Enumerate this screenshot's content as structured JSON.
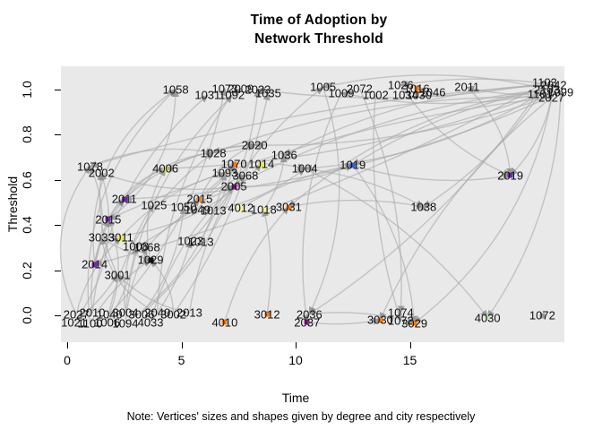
{
  "title": {
    "line1": "Time of Adoption by",
    "line2": "Network Threshold"
  },
  "axes": {
    "x": {
      "label": "Time",
      "ticks": [
        0,
        5,
        10,
        15
      ],
      "range": [
        0,
        21.8
      ]
    },
    "y": {
      "label": "Threshold",
      "ticks": [
        "0.0",
        "0.2",
        "0.4",
        "0.6",
        "0.8",
        "1.0"
      ],
      "range": [
        0,
        1
      ]
    }
  },
  "note": "Note: Vertices' sizes and shapes given by degree and city respectively",
  "colors": {
    "panel_bg": "#e9e9e9",
    "edge": "#a8a8a8",
    "arrow": "#8a8a8a",
    "label_text": "#111111"
  },
  "chart_data": {
    "type": "scatter",
    "title": "Time of Adoption by Network Threshold",
    "xlabel": "Time",
    "ylabel": "Threshold",
    "xlim": [
      0,
      21.8
    ],
    "ylim": [
      -0.05,
      1.05
    ],
    "legend": "none",
    "grid": false,
    "nodes": [
      {
        "label": "1058",
        "time": 4.75,
        "threshold": 1.0,
        "dot": null
      },
      {
        "label": "1031",
        "time": 6.15,
        "threshold": 0.975,
        "dot": null
      },
      {
        "label": "1092",
        "time": 7.2,
        "threshold": 0.975,
        "dot": null
      },
      {
        "label": "1073",
        "time": 6.9,
        "threshold": 1.005,
        "dot": null
      },
      {
        "label": "2009",
        "time": 7.6,
        "threshold": 1.005,
        "dot": null
      },
      {
        "label": "2023",
        "time": 8.35,
        "threshold": 1.0,
        "dot": null
      },
      {
        "label": "1035",
        "time": 8.8,
        "threshold": 0.985,
        "dot": null
      },
      {
        "label": "1005",
        "time": 11.2,
        "threshold": 1.01,
        "dot": null
      },
      {
        "label": "1009",
        "time": 12.0,
        "threshold": 0.985,
        "dot": null
      },
      {
        "label": "2072",
        "time": 12.8,
        "threshold": 1.005,
        "dot": null
      },
      {
        "label": "1002",
        "time": 13.5,
        "threshold": 0.975,
        "dot": null
      },
      {
        "label": "1026",
        "time": 14.6,
        "threshold": 1.02,
        "dot": null
      },
      {
        "label": "1016",
        "time": 15.3,
        "threshold": 1.005,
        "dot": "#e77f24"
      },
      {
        "label": "1034",
        "time": 14.8,
        "threshold": 0.975,
        "dot": null
      },
      {
        "label": "1030",
        "time": 15.4,
        "threshold": 0.975,
        "dot": null
      },
      {
        "label": "1046",
        "time": 16.0,
        "threshold": 0.99,
        "dot": null
      },
      {
        "label": "2011",
        "time": 17.5,
        "threshold": 1.01,
        "dot": null
      },
      {
        "label": "2103",
        "time": 21.0,
        "threshold": 1.0,
        "dot": null
      },
      {
        "label": "1101",
        "time": 20.7,
        "threshold": 0.98,
        "dot": null
      },
      {
        "label": "2042",
        "time": 21.3,
        "threshold": 1.02,
        "dot": null
      },
      {
        "label": "1099",
        "time": 21.6,
        "threshold": 0.99,
        "dot": null
      },
      {
        "label": "2027",
        "time": 21.2,
        "threshold": 0.965,
        "dot": null
      },
      {
        "label": "1103",
        "time": 20.9,
        "threshold": 1.03,
        "dot": null
      },
      {
        "label": "1078",
        "time": 1.0,
        "threshold": 0.66,
        "dot": null
      },
      {
        "label": "2002",
        "time": 1.5,
        "threshold": 0.63,
        "dot": null
      },
      {
        "label": "4006",
        "time": 4.3,
        "threshold": 0.65,
        "dot": "#ede93c"
      },
      {
        "label": "1028",
        "time": 6.4,
        "threshold": 0.72,
        "dot": null
      },
      {
        "label": "1070",
        "time": 7.3,
        "threshold": 0.67,
        "dot": "#e77f24"
      },
      {
        "label": "1093",
        "time": 6.9,
        "threshold": 0.63,
        "dot": null
      },
      {
        "label": "3068",
        "time": 7.8,
        "threshold": 0.62,
        "dot": null
      },
      {
        "label": "2005",
        "time": 7.3,
        "threshold": 0.57,
        "dot": "#8b1f8f"
      },
      {
        "label": "2020",
        "time": 8.2,
        "threshold": 0.755,
        "dot": null
      },
      {
        "label": "1036",
        "time": 9.5,
        "threshold": 0.71,
        "dot": "#9a9a9a"
      },
      {
        "label": "1014",
        "time": 8.5,
        "threshold": 0.67,
        "dot": "#ede93c"
      },
      {
        "label": "1004",
        "time": 10.4,
        "threshold": 0.65,
        "dot": null
      },
      {
        "label": "1019",
        "time": 12.5,
        "threshold": 0.665,
        "dot": "#3a5bc7"
      },
      {
        "label": "2019",
        "time": 19.4,
        "threshold": 0.62,
        "dot": "#6f2da0"
      },
      {
        "label": "2011",
        "time": 2.5,
        "threshold": 0.515,
        "dot": "#6f2da0"
      },
      {
        "label": "1025",
        "time": 3.8,
        "threshold": 0.49,
        "dot": null
      },
      {
        "label": "2015",
        "time": 5.8,
        "threshold": 0.515,
        "dot": "#e77f24"
      },
      {
        "label": "1050",
        "time": 5.1,
        "threshold": 0.48,
        "dot": null
      },
      {
        "label": "1049",
        "time": 5.7,
        "threshold": 0.47,
        "dot": null
      },
      {
        "label": "1013",
        "time": 6.4,
        "threshold": 0.465,
        "dot": null
      },
      {
        "label": "4012",
        "time": 7.6,
        "threshold": 0.475,
        "dot": "#f5f0a0"
      },
      {
        "label": "1018",
        "time": 8.6,
        "threshold": 0.47,
        "dot": "#f5f0a0"
      },
      {
        "label": "3031",
        "time": 9.7,
        "threshold": 0.48,
        "dot": "#e77f24"
      },
      {
        "label": "1038",
        "time": 15.6,
        "threshold": 0.48,
        "dot": "#9a9a9a"
      },
      {
        "label": "2015",
        "time": 1.8,
        "threshold": 0.425,
        "dot": "#6f2da0"
      },
      {
        "label": "3033",
        "time": 1.5,
        "threshold": 0.345,
        "dot": null
      },
      {
        "label": "3011",
        "time": 2.35,
        "threshold": 0.345,
        "dot": "#ede93c"
      },
      {
        "label": "1008",
        "time": 3.0,
        "threshold": 0.305,
        "dot": null
      },
      {
        "label": "1068",
        "time": 3.5,
        "threshold": 0.3,
        "dot": null
      },
      {
        "label": "1023",
        "time": 5.4,
        "threshold": 0.33,
        "dot": null
      },
      {
        "label": "1013",
        "time": 5.85,
        "threshold": 0.325,
        "dot": null
      },
      {
        "label": "1029",
        "time": 3.65,
        "threshold": 0.245,
        "dot": "#111111"
      },
      {
        "label": "2014",
        "time": 1.2,
        "threshold": 0.225,
        "dot": "#6f2da0"
      },
      {
        "label": "3001",
        "time": 2.2,
        "threshold": 0.18,
        "dot": null
      },
      {
        "label": "2027",
        "time": 0.4,
        "threshold": 0.005,
        "dot": null
      },
      {
        "label": "2010",
        "time": 1.1,
        "threshold": 0.01,
        "dot": null
      },
      {
        "label": "1040",
        "time": 1.85,
        "threshold": 0.005,
        "dot": null
      },
      {
        "label": "3004",
        "time": 2.55,
        "threshold": 0.01,
        "dot": null
      },
      {
        "label": "3006",
        "time": 3.25,
        "threshold": 0.005,
        "dot": null
      },
      {
        "label": "2040",
        "time": 3.95,
        "threshold": 0.01,
        "dot": null
      },
      {
        "label": "3002",
        "time": 4.65,
        "threshold": 0.005,
        "dot": null
      },
      {
        "label": "2013",
        "time": 5.35,
        "threshold": 0.01,
        "dot": null
      },
      {
        "label": "1021",
        "time": 0.3,
        "threshold": -0.03,
        "dot": null
      },
      {
        "label": "1100",
        "time": 1.0,
        "threshold": -0.035,
        "dot": null
      },
      {
        "label": "1006",
        "time": 1.75,
        "threshold": -0.03,
        "dot": null
      },
      {
        "label": "1094",
        "time": 2.55,
        "threshold": -0.035,
        "dot": null
      },
      {
        "label": "4033",
        "time": 3.65,
        "threshold": -0.03,
        "dot": null
      },
      {
        "label": "4010",
        "time": 6.9,
        "threshold": -0.03,
        "dot": "#e77f24"
      },
      {
        "label": "3012",
        "time": 8.75,
        "threshold": 0.005,
        "dot": "#e77f24"
      },
      {
        "label": "2036",
        "time": 10.6,
        "threshold": 0.005,
        "dot": null
      },
      {
        "label": "2037",
        "time": 10.5,
        "threshold": -0.03,
        "dot": "#8b1f8f"
      },
      {
        "label": "3030",
        "time": 13.7,
        "threshold": -0.02,
        "dot": "#e77f24"
      },
      {
        "label": "1074",
        "time": 14.6,
        "threshold": 0.01,
        "dot": null
      },
      {
        "label": "1073",
        "time": 14.6,
        "threshold": -0.025,
        "dot": null
      },
      {
        "label": "3029",
        "time": 15.2,
        "threshold": -0.035,
        "dot": "#e77f24"
      },
      {
        "label": "4030",
        "time": 18.4,
        "threshold": -0.01,
        "dot": "#cce8c0"
      },
      {
        "label": "1072",
        "time": 20.8,
        "threshold": 0.0,
        "dot": "#9a9a9a"
      }
    ],
    "edges": [
      [
        58,
        1,
        0.2
      ],
      [
        59,
        3,
        -0.15
      ],
      [
        60,
        4,
        0.2
      ],
      [
        61,
        5,
        -0.2
      ],
      [
        62,
        2,
        0.15
      ],
      [
        63,
        6,
        -0.1
      ],
      [
        64,
        7,
        0.2
      ],
      [
        66,
        0,
        0.25
      ],
      [
        67,
        26,
        0.2
      ],
      [
        68,
        28,
        -0.2
      ],
      [
        69,
        30,
        0.15
      ],
      [
        57,
        23,
        0.3
      ],
      [
        65,
        24,
        -0.25
      ],
      [
        58,
        37,
        0.2
      ],
      [
        59,
        47,
        -0.2
      ],
      [
        60,
        38,
        0.2
      ],
      [
        61,
        40,
        -0.15
      ],
      [
        62,
        48,
        0.25
      ],
      [
        63,
        54,
        -0.2
      ],
      [
        64,
        56,
        0.15
      ],
      [
        17,
        7,
        -0.12
      ],
      [
        18,
        8,
        0.1
      ],
      [
        19,
        11,
        -0.08
      ],
      [
        20,
        16,
        0.1
      ],
      [
        21,
        36,
        0.15
      ],
      [
        17,
        35,
        -0.1
      ],
      [
        18,
        34,
        0.12
      ],
      [
        19,
        32,
        -0.12
      ],
      [
        20,
        31,
        0.1
      ],
      [
        21,
        26,
        -0.1
      ],
      [
        22,
        5,
        0.08
      ],
      [
        17,
        45,
        -0.15
      ],
      [
        18,
        46,
        0.1
      ],
      [
        19,
        77,
        0.2
      ],
      [
        20,
        78,
        0.15
      ],
      [
        21,
        74,
        -0.12
      ],
      [
        22,
        72,
        0.1
      ],
      [
        17,
        30,
        -0.1
      ],
      [
        18,
        25,
        0.08
      ],
      [
        19,
        23,
        -0.06
      ],
      [
        20,
        37,
        0.1
      ],
      [
        21,
        47,
        -0.08
      ],
      [
        22,
        55,
        0.06
      ],
      [
        37,
        26,
        0.2
      ],
      [
        38,
        30,
        -0.15
      ],
      [
        39,
        31,
        0.2
      ],
      [
        40,
        27,
        -0.1
      ],
      [
        41,
        29,
        0.15
      ],
      [
        42,
        34,
        -0.12
      ],
      [
        43,
        35,
        0.1
      ],
      [
        44,
        32,
        -0.15
      ],
      [
        45,
        46,
        0.1
      ],
      [
        47,
        25,
        0.2
      ],
      [
        48,
        33,
        -0.2
      ],
      [
        49,
        28,
        0.15
      ],
      [
        50,
        39,
        -0.1
      ],
      [
        51,
        41,
        0.12
      ],
      [
        52,
        27,
        -0.15
      ],
      [
        53,
        29,
        0.1
      ],
      [
        54,
        25,
        0.2
      ],
      [
        55,
        23,
        -0.2
      ],
      [
        56,
        24,
        0.15
      ],
      [
        30,
        35,
        -0.1
      ],
      [
        33,
        34,
        0.08
      ],
      [
        35,
        36,
        -0.12
      ],
      [
        34,
        46,
        0.1
      ],
      [
        26,
        31,
        -0.08
      ],
      [
        72,
        77,
        0.1
      ],
      [
        73,
        74,
        -0.08
      ],
      [
        35,
        77,
        0.15
      ],
      [
        34,
        78,
        0.12
      ],
      [
        16,
        36,
        0.2
      ],
      [
        11,
        36,
        -0.15
      ],
      [
        7,
        72,
        0.2
      ],
      [
        8,
        73,
        -0.15
      ],
      [
        9,
        75,
        0.12
      ],
      [
        10,
        76,
        -0.1
      ],
      [
        55,
        0,
        0.3
      ],
      [
        47,
        0,
        -0.25
      ],
      [
        57,
        49,
        0.15
      ],
      [
        65,
        56,
        -0.1
      ],
      [
        66,
        54,
        0.12
      ],
      [
        67,
        50,
        -0.12
      ],
      [
        68,
        51,
        0.1
      ],
      [
        69,
        52,
        -0.1
      ],
      [
        70,
        45,
        0.12
      ],
      [
        71,
        44,
        -0.1
      ],
      [
        37,
        31,
        0.18
      ],
      [
        39,
        27,
        -0.12
      ],
      [
        23,
        26,
        0.15
      ],
      [
        24,
        30,
        -0.12
      ],
      [
        25,
        31,
        0.1
      ],
      [
        47,
        37,
        0.08
      ],
      [
        48,
        54,
        -0.08
      ],
      [
        55,
        47,
        0.06
      ]
    ]
  }
}
